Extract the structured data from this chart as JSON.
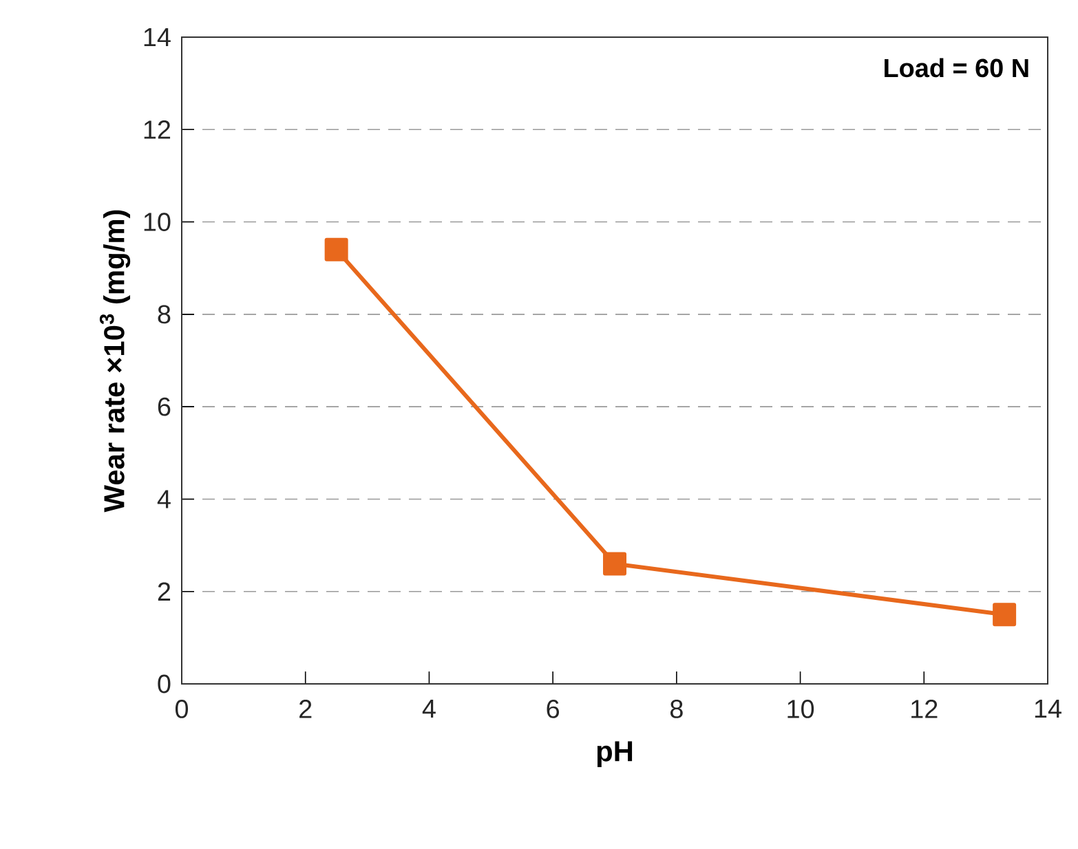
{
  "chart_data": {
    "type": "line",
    "xlabel": "pH",
    "ylabel": "Wear rate ×10$^{3}$ (mg/m)",
    "annotations": [
      "Load = 60 N"
    ],
    "x": [
      2.5,
      7.0,
      13.3
    ],
    "series": [
      {
        "color": "#e8681c",
        "values": [
          9.4,
          2.6,
          1.5
        ]
      }
    ],
    "xlim": [
      0,
      14
    ],
    "ylim": [
      0,
      14
    ],
    "xticks": [
      0,
      2,
      4,
      6,
      8,
      10,
      12,
      14
    ],
    "yticks": [
      0,
      2,
      4,
      6,
      8,
      10,
      12,
      14
    ],
    "grid": "y",
    "marker": "square",
    "line_style": "solid"
  }
}
